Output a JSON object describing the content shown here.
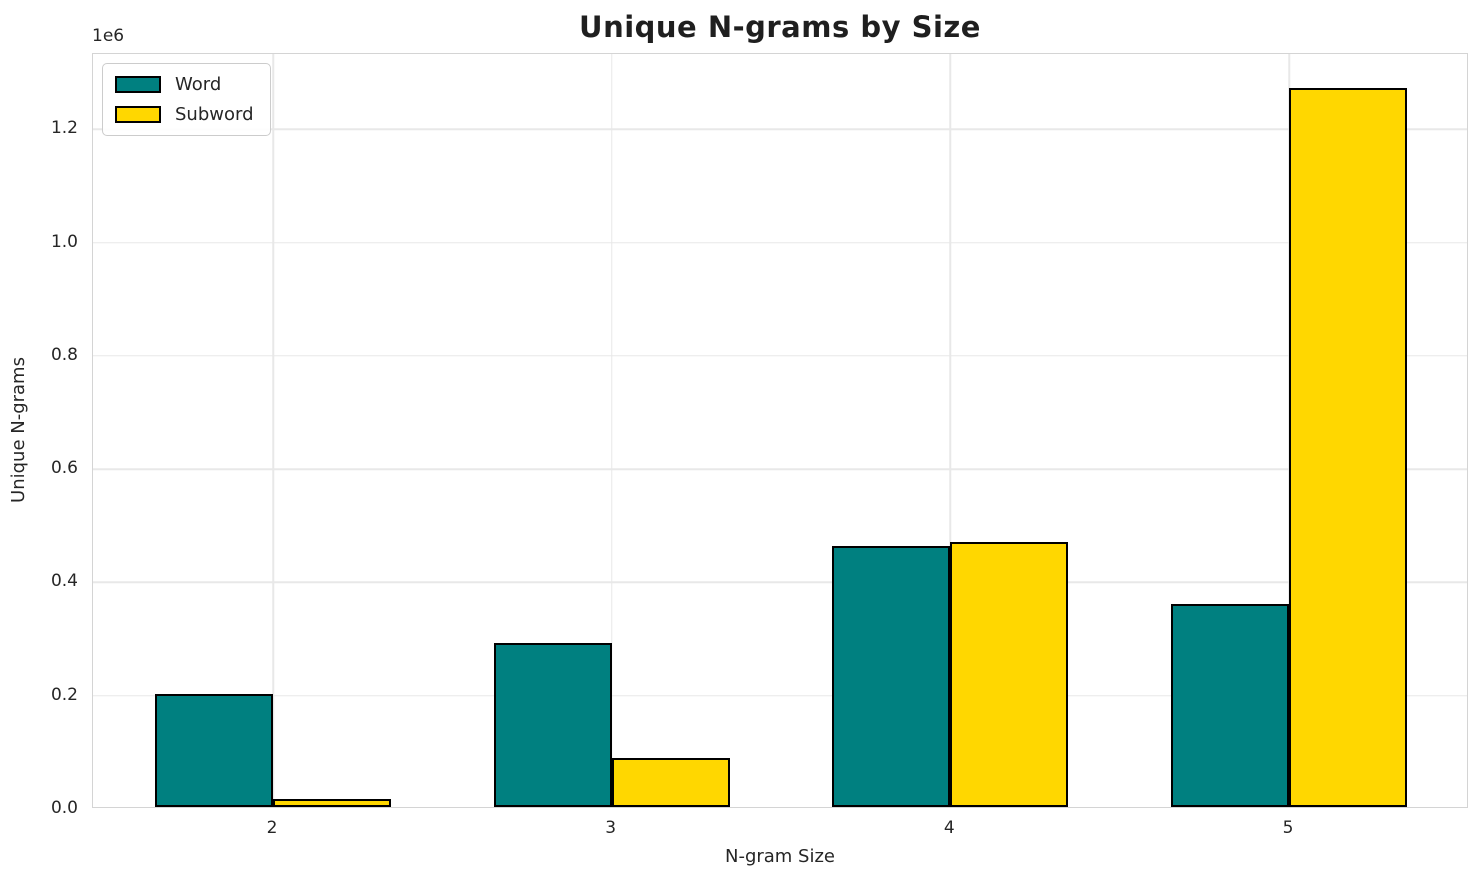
{
  "chart_data": {
    "type": "bar",
    "title": "Unique N-grams by Size",
    "xlabel": "N-gram Size",
    "ylabel": "Unique N-grams",
    "offset_label": "1e6",
    "categories": [
      "2",
      "3",
      "4",
      "5"
    ],
    "series": [
      {
        "name": "Word",
        "color": "#008080",
        "values": [
          200000,
          290000,
          460000,
          358000
        ]
      },
      {
        "name": "Subword",
        "color": "#FFD700",
        "values": [
          15000,
          86000,
          468000,
          1270000
        ]
      }
    ],
    "ylim": [
      0,
      1333000
    ],
    "yticks": [
      0,
      200000,
      400000,
      600000,
      800000,
      1000000,
      1200000
    ],
    "ytick_labels": [
      "0.0",
      "0.2",
      "0.4",
      "0.6",
      "0.8",
      "1.0",
      "1.2"
    ],
    "bar_edge_color": "#000000",
    "grid": true,
    "legend_position": "upper-left"
  }
}
